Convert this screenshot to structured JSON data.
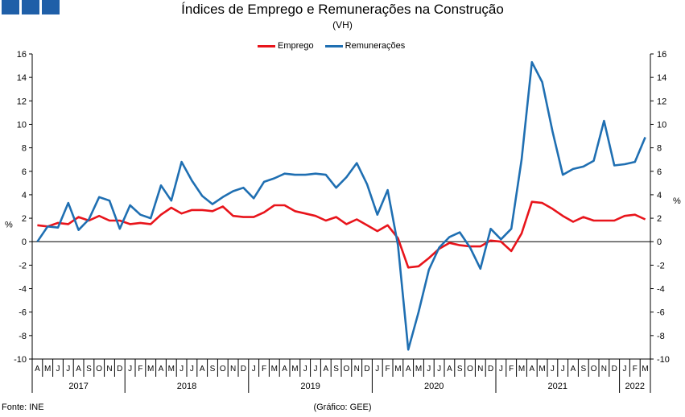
{
  "header": {
    "title": "Índices de Emprego e Remunerações na Construção",
    "subtitle": "(VH)"
  },
  "footer": {
    "source": "Fonte: INE",
    "credit": "(Gráfico: GEE)"
  },
  "chart_data": {
    "type": "line",
    "title": "Índices de Emprego e Remunerações na Construção",
    "subtitle": "(VH)",
    "ylabel_left": "%",
    "ylabel_right": "%",
    "ylim": [
      -10,
      16
    ],
    "yticks": [
      -10,
      -8,
      -6,
      -4,
      -2,
      0,
      2,
      4,
      6,
      8,
      10,
      12,
      14,
      16
    ],
    "legend_position": "top-center",
    "grid": false,
    "x": [
      "A",
      "M",
      "J",
      "J",
      "A",
      "S",
      "O",
      "N",
      "D",
      "J",
      "F",
      "M",
      "A",
      "M",
      "J",
      "J",
      "A",
      "S",
      "O",
      "N",
      "D",
      "J",
      "F",
      "M",
      "A",
      "M",
      "J",
      "J",
      "A",
      "S",
      "O",
      "N",
      "D",
      "J",
      "F",
      "M",
      "A",
      "M",
      "J",
      "J",
      "A",
      "S",
      "O",
      "N",
      "D",
      "J",
      "F",
      "M",
      "A",
      "M",
      "J",
      "J",
      "A",
      "S",
      "O",
      "N",
      "D",
      "J",
      "F",
      "M"
    ],
    "years": [
      {
        "label": "2017",
        "start": 0,
        "end": 9
      },
      {
        "label": "2018",
        "start": 9,
        "end": 21
      },
      {
        "label": "2019",
        "start": 21,
        "end": 33
      },
      {
        "label": "2020",
        "start": 33,
        "end": 45
      },
      {
        "label": "2021",
        "start": 45,
        "end": 57
      },
      {
        "label": "2022",
        "start": 57,
        "end": 60
      }
    ],
    "series": [
      {
        "name": "Emprego",
        "color": "#e8141b",
        "values": [
          1.4,
          1.3,
          1.6,
          1.5,
          2.1,
          1.8,
          2.2,
          1.8,
          1.8,
          1.5,
          1.6,
          1.5,
          2.3,
          2.9,
          2.4,
          2.7,
          2.7,
          2.6,
          3.0,
          2.2,
          2.1,
          2.1,
          2.5,
          3.1,
          3.1,
          2.6,
          2.4,
          2.2,
          1.8,
          2.1,
          1.5,
          1.9,
          1.4,
          0.9,
          1.4,
          0.3,
          -2.2,
          -2.1,
          -1.4,
          -0.6,
          -0.1,
          -0.3,
          -0.4,
          -0.4,
          0.1,
          0.0,
          -0.8,
          0.7,
          3.4,
          3.3,
          2.8,
          2.2,
          1.7,
          2.1,
          1.8,
          1.8,
          1.8,
          2.2,
          2.3,
          1.9
        ]
      },
      {
        "name": "Remunerações",
        "color": "#1f6fb2",
        "values": [
          0.0,
          1.3,
          1.2,
          3.3,
          1.0,
          1.9,
          3.8,
          3.5,
          1.1,
          3.1,
          2.3,
          2.0,
          4.8,
          3.5,
          6.8,
          5.2,
          3.9,
          3.2,
          3.8,
          4.3,
          4.6,
          3.7,
          5.1,
          5.4,
          5.8,
          5.7,
          5.7,
          5.8,
          5.7,
          4.6,
          5.5,
          6.7,
          4.9,
          2.3,
          4.4,
          -0.3,
          -9.2,
          -6.0,
          -2.4,
          -0.5,
          0.4,
          0.8,
          -0.5,
          -2.3,
          1.1,
          0.2,
          1.1,
          7.0,
          15.3,
          13.6,
          9.4,
          5.7,
          6.2,
          6.4,
          6.9,
          10.3,
          6.5,
          6.6,
          6.8,
          8.9
        ]
      }
    ]
  }
}
